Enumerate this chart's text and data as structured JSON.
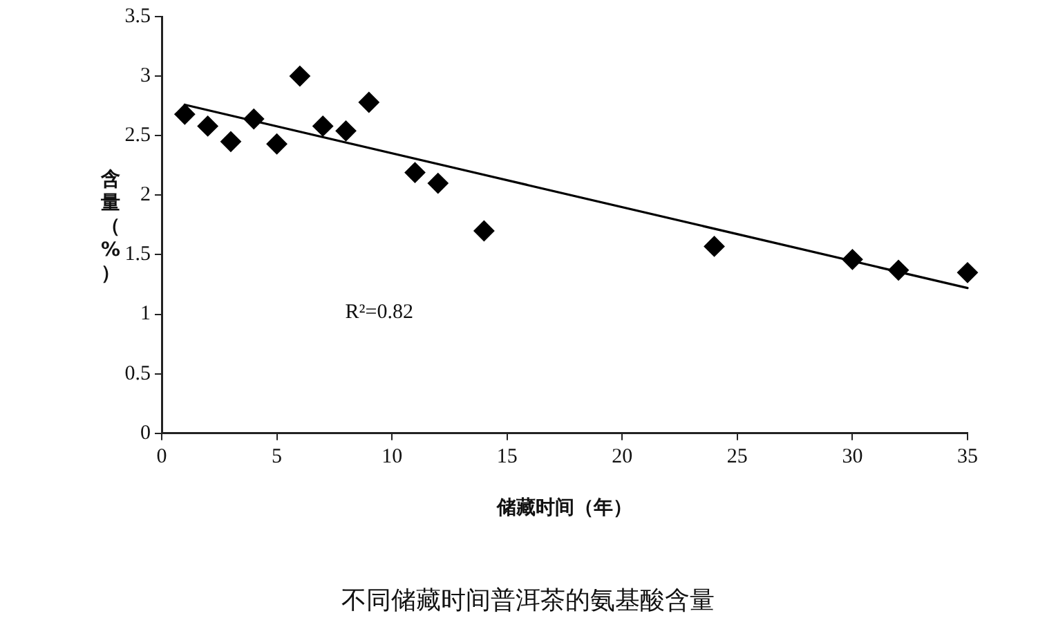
{
  "chart_data": {
    "type": "scatter",
    "title": "不同储藏时间普洱茶的氨基酸含量",
    "xlabel": "储藏时间（年）",
    "ylabel": "含量（%）",
    "annotations": [
      "R²=0.82"
    ],
    "series": [
      {
        "type": "scatter",
        "color": "#000000",
        "x": [
          1,
          2,
          3,
          4,
          5,
          6,
          7,
          8,
          9,
          11,
          12,
          14,
          24,
          30,
          32,
          35
        ],
        "values": [
          2.68,
          2.58,
          2.45,
          2.64,
          2.43,
          3.0,
          2.58,
          2.54,
          2.78,
          2.19,
          2.1,
          1.7,
          1.57,
          1.46,
          1.37,
          1.35
        ]
      },
      {
        "type": "line",
        "color": "#000000",
        "x": [
          1,
          35
        ],
        "values": [
          2.76,
          1.22
        ],
        "marker": "none"
      }
    ],
    "xlim": [
      0,
      35
    ],
    "ylim": [
      0,
      3.5
    ],
    "xticks": [
      0,
      5,
      10,
      15,
      20,
      25,
      30,
      35
    ],
    "yticks": [
      0,
      0.5,
      1,
      1.5,
      2,
      2.5,
      3,
      3.5
    ],
    "grid": false,
    "legend": false,
    "marker": "diamond"
  }
}
